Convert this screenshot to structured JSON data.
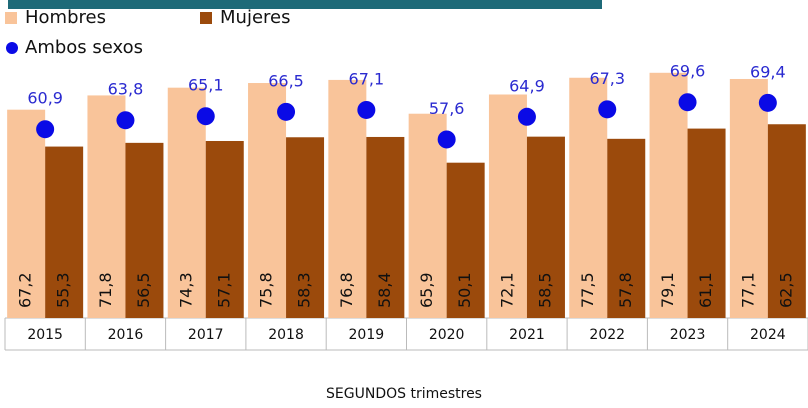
{
  "chart_data": {
    "type": "bar",
    "x_label": "SEGUNDOS trimestres",
    "categories": [
      "2015",
      "2016",
      "2017",
      "2018",
      "2019",
      "2020",
      "2021",
      "2022",
      "2023",
      "2024"
    ],
    "ylim": [
      0,
      100
    ],
    "series": [
      {
        "name": "Hombres",
        "color": "#f9c49a",
        "values": [
          67.2,
          71.8,
          74.3,
          75.8,
          76.8,
          65.9,
          72.1,
          77.5,
          79.1,
          77.1
        ],
        "value_labels": [
          "67,2",
          "71,8",
          "74,3",
          "75,8",
          "76,8",
          "65,9",
          "72,1",
          "77,5",
          "79,1",
          "77,1"
        ]
      },
      {
        "name": "Mujeres",
        "color": "#9b4a0c",
        "values": [
          55.3,
          56.5,
          57.1,
          58.3,
          58.4,
          50.1,
          58.5,
          57.8,
          61.1,
          62.5
        ],
        "value_labels": [
          "55,3",
          "56,5",
          "57,1",
          "58,3",
          "58,4",
          "50,1",
          "58,5",
          "57,8",
          "61,1",
          "62,5"
        ]
      },
      {
        "name": "Ambos sexos",
        "type": "scatter",
        "color": "#0a0ae6",
        "values": [
          60.9,
          63.8,
          65.1,
          66.5,
          67.1,
          57.6,
          64.9,
          67.3,
          69.6,
          69.4
        ],
        "value_labels": [
          "60,9",
          "63,8",
          "65,1",
          "66,5",
          "67,1",
          "57,6",
          "64,9",
          "67,3",
          "69,6",
          "69,4"
        ]
      }
    ]
  }
}
